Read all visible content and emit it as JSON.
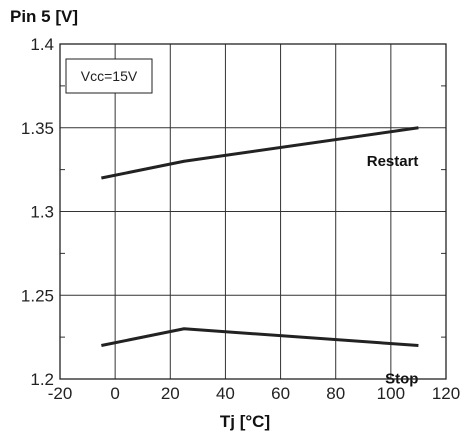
{
  "chart_data": {
    "type": "line",
    "ylabel": "Pin 5 [V]",
    "xlabel": "Tj [°C]",
    "xlim": [
      -20,
      120
    ],
    "ylim": [
      1.2,
      1.4
    ],
    "x_ticks": [
      -20,
      0,
      20,
      40,
      60,
      80,
      100,
      120
    ],
    "x_tick_labels": [
      "-20",
      "0",
      "20",
      "40",
      "60",
      "80",
      "100",
      "120"
    ],
    "y_ticks": [
      1.2,
      1.25,
      1.3,
      1.35,
      1.4
    ],
    "y_tick_labels": [
      "1.2",
      "1.25",
      "1.3",
      "1.35",
      "1.4"
    ],
    "grid": true,
    "annotation": "Vcc=15V",
    "series": [
      {
        "name": "Restart",
        "x": [
          -5,
          25,
          110
        ],
        "y": [
          1.32,
          1.33,
          1.35
        ],
        "color": "#222222"
      },
      {
        "name": "Stop",
        "x": [
          -5,
          25,
          110
        ],
        "y": [
          1.22,
          1.23,
          1.22
        ],
        "color": "#222222"
      }
    ]
  }
}
